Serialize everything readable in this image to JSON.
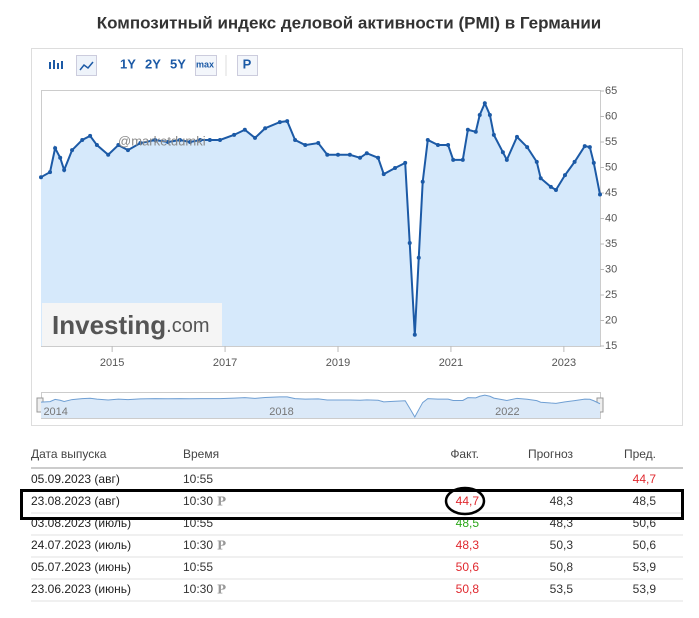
{
  "toolbar": [
    "1Y",
    "2Y",
    "5Y",
    "max",
    "P"
  ],
  "watermark": "@marketdumki",
  "logo": {
    "main": "Investing",
    "suffix": ".com"
  },
  "chart_data": {
    "type": "line",
    "title": "Композитный индекс деловой активности (PMI) в Германии",
    "x": [
      2013.74,
      2013.9,
      2013.99,
      2014.08,
      2014.15,
      2014.29,
      2014.47,
      2014.61,
      2014.73,
      2014.93,
      2015.11,
      2015.28,
      2015.5,
      2015.76,
      2015.99,
      2016.2,
      2016.38,
      2016.56,
      2016.73,
      2016.91,
      2017.16,
      2017.35,
      2017.53,
      2017.71,
      2017.97,
      2018.1,
      2018.24,
      2018.42,
      2018.65,
      2018.81,
      2019.0,
      2019.21,
      2019.39,
      2019.51,
      2019.71,
      2019.81,
      2020.01,
      2020.19,
      2020.27,
      2020.36,
      2020.43,
      2020.5,
      2020.59,
      2020.77,
      2020.95,
      2021.04,
      2021.21,
      2021.3,
      2021.44,
      2021.51,
      2021.6,
      2021.69,
      2021.76,
      2021.92,
      2021.99,
      2022.17,
      2022.35,
      2022.52,
      2022.59,
      2022.77,
      2022.86,
      2023.02,
      2023.19,
      2023.37,
      2023.46,
      2023.53,
      2023.64
    ],
    "values": [
      48.1,
      49.1,
      53.8,
      51.9,
      49.5,
      53.4,
      55.4,
      56.2,
      54.4,
      52.5,
      54.4,
      53.4,
      54.8,
      55.4,
      55.0,
      55.4,
      55.0,
      55.4,
      55.4,
      55.4,
      56.4,
      57.4,
      55.8,
      57.7,
      58.9,
      59.1,
      55.4,
      54.4,
      54.8,
      52.5,
      52.5,
      52.5,
      51.9,
      52.8,
      51.9,
      48.7,
      49.9,
      50.9,
      35.2,
      17.2,
      32.3,
      47.2,
      55.4,
      54.4,
      54.4,
      51.5,
      51.5,
      57.4,
      57.0,
      60.3,
      62.6,
      60.3,
      56.4,
      53.0,
      51.5,
      56.0,
      54.0,
      51.1,
      47.9,
      46.2,
      45.6,
      48.5,
      51.1,
      54.2,
      54.0,
      50.9,
      44.7
    ],
    "color": "#1c5aa6",
    "fill": "#d6e9fb",
    "xlim": [
      2013.74,
      2023.64
    ],
    "xticks": [
      2015,
      2017,
      2019,
      2021,
      2023
    ],
    "ylim": [
      15,
      65
    ],
    "yticks": [
      15,
      20,
      25,
      30,
      35,
      40,
      45,
      50,
      55,
      60,
      65
    ],
    "nav_xticks": [
      2014,
      2018,
      2022
    ]
  },
  "table": {
    "headers": [
      "Дата выпуска",
      "Время",
      "Факт.",
      "Прогноз",
      "Пред."
    ],
    "rows": [
      {
        "date": "05.09.2023 (авг)",
        "time": "10:55",
        "prev": "44,7",
        "prev_color": "#e0282e"
      },
      {
        "date": "23.08.2023 (авг)",
        "time": "10:30",
        "icon": "P",
        "actual": "44,7",
        "actual_color": "#e0282e",
        "forecast": "48,3",
        "prev": "48,5"
      },
      {
        "date": "03.08.2023 (июль)",
        "time": "10:55",
        "actual": "48,5",
        "actual_color": "#2ea81c",
        "forecast": "48,3",
        "prev": "50,6"
      },
      {
        "date": "24.07.2023 (июль)",
        "time": "10:30",
        "icon": "P",
        "actual": "48,3",
        "actual_color": "#e0282e",
        "forecast": "50,3",
        "prev": "50,6"
      },
      {
        "date": "05.07.2023 (июнь)",
        "time": "10:55",
        "actual": "50,6",
        "actual_color": "#e0282e",
        "forecast": "50,8",
        "prev": "53,9"
      },
      {
        "date": "23.06.2023 (июнь)",
        "time": "10:30",
        "icon": "P",
        "actual": "50,8",
        "actual_color": "#e0282e",
        "forecast": "53,5",
        "prev": "53,9"
      }
    ]
  }
}
